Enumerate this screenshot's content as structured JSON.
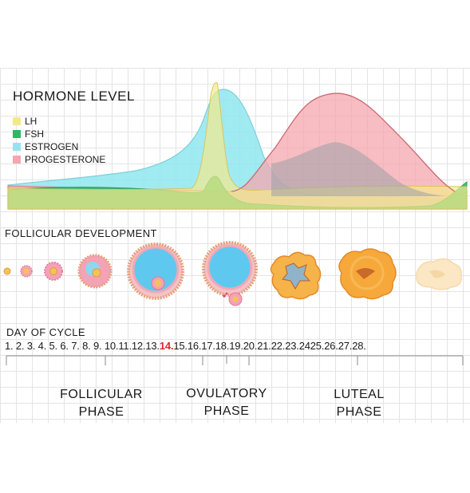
{
  "title": "HORMONE LEVEL",
  "legend": [
    {
      "label": "LH",
      "color": "#f3e98c"
    },
    {
      "label": "FSH",
      "color": "#2cb865"
    },
    {
      "label": "ESTROGEN",
      "color": "#8fe6f0"
    },
    {
      "label": "PROGESTERONE",
      "color": "#f5a7ae"
    }
  ],
  "follicular_heading": "FOLLICULAR DEVELOPMENT",
  "day_heading": "DAY OF CYCLE",
  "days": [
    "1.",
    "2.",
    "3.",
    "4.",
    "5.",
    "6.",
    "7.",
    "8.",
    "9.",
    "10.",
    "11.",
    "12.",
    "13.",
    "14.",
    "15.",
    "16.",
    "17.",
    "18.",
    "19.",
    "20.",
    "21.",
    "22.",
    "23.",
    "24",
    "25.",
    "26.",
    "27.",
    "28."
  ],
  "highlight_day": "14.",
  "phases": [
    {
      "line1": "FOLLICULAR",
      "line2": "PHASE"
    },
    {
      "line1": "OVULATORY",
      "line2": "PHASE"
    },
    {
      "line1": "LUTEAL",
      "line2": "PHASE"
    }
  ]
}
